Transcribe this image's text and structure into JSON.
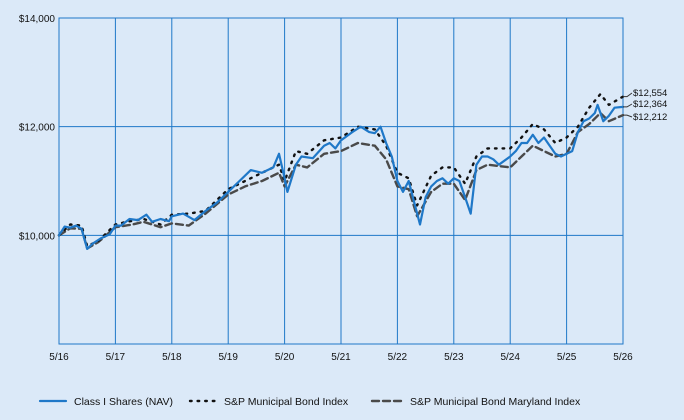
{
  "chart_data": {
    "type": "line",
    "x_ticks": [
      "5/16",
      "5/17",
      "5/18",
      "5/19",
      "5/20",
      "5/21",
      "5/22",
      "5/23",
      "5/24",
      "5/25",
      "5/26"
    ],
    "y_ticks": [
      10000,
      12000,
      14000
    ],
    "y_tick_labels": [
      "$10,000",
      "$12,000",
      "$14,000"
    ],
    "ylim": [
      8000,
      14000
    ],
    "xlim": [
      0,
      10
    ],
    "grid": true,
    "legend_position": "bottom",
    "series": [
      {
        "name": "Class I Shares (NAV)",
        "color": "#1f78c8",
        "style": "solid",
        "end_label": "$12,364",
        "points": [
          [
            0,
            10000
          ],
          [
            0.1,
            10160
          ],
          [
            0.2,
            10140
          ],
          [
            0.3,
            10180
          ],
          [
            0.4,
            10120
          ],
          [
            0.5,
            9750
          ],
          [
            0.6,
            9850
          ],
          [
            0.75,
            9950
          ],
          [
            0.9,
            10020
          ],
          [
            1.0,
            10180
          ],
          [
            1.1,
            10180
          ],
          [
            1.25,
            10300
          ],
          [
            1.4,
            10280
          ],
          [
            1.55,
            10380
          ],
          [
            1.65,
            10250
          ],
          [
            1.8,
            10300
          ],
          [
            1.95,
            10260
          ],
          [
            2.0,
            10350
          ],
          [
            2.2,
            10400
          ],
          [
            2.4,
            10280
          ],
          [
            2.6,
            10450
          ],
          [
            2.8,
            10600
          ],
          [
            3.0,
            10800
          ],
          [
            3.2,
            11000
          ],
          [
            3.4,
            11200
          ],
          [
            3.6,
            11150
          ],
          [
            3.8,
            11250
          ],
          [
            3.9,
            11500
          ],
          [
            4.0,
            11050
          ],
          [
            4.05,
            10800
          ],
          [
            4.2,
            11300
          ],
          [
            4.3,
            11450
          ],
          [
            4.5,
            11420
          ],
          [
            4.7,
            11650
          ],
          [
            4.8,
            11700
          ],
          [
            4.9,
            11600
          ],
          [
            5.0,
            11750
          ],
          [
            5.2,
            11900
          ],
          [
            5.35,
            12000
          ],
          [
            5.5,
            11900
          ],
          [
            5.6,
            11880
          ],
          [
            5.7,
            12000
          ],
          [
            5.8,
            11700
          ],
          [
            5.9,
            11450
          ],
          [
            6.0,
            11000
          ],
          [
            6.1,
            10800
          ],
          [
            6.2,
            11000
          ],
          [
            6.3,
            10600
          ],
          [
            6.4,
            10200
          ],
          [
            6.5,
            10700
          ],
          [
            6.6,
            10900
          ],
          [
            6.7,
            11000
          ],
          [
            6.8,
            11050
          ],
          [
            6.9,
            10950
          ],
          [
            7.0,
            11050
          ],
          [
            7.1,
            11000
          ],
          [
            7.2,
            10700
          ],
          [
            7.3,
            10400
          ],
          [
            7.4,
            11300
          ],
          [
            7.5,
            11450
          ],
          [
            7.6,
            11450
          ],
          [
            7.7,
            11400
          ],
          [
            7.8,
            11300
          ],
          [
            8.0,
            11450
          ],
          [
            8.1,
            11550
          ],
          [
            8.2,
            11700
          ],
          [
            8.3,
            11700
          ],
          [
            8.4,
            11850
          ],
          [
            8.5,
            11700
          ],
          [
            8.6,
            11800
          ],
          [
            8.7,
            11650
          ],
          [
            8.8,
            11500
          ],
          [
            8.9,
            11450
          ],
          [
            9.0,
            11500
          ],
          [
            9.1,
            11550
          ],
          [
            9.2,
            11900
          ],
          [
            9.3,
            12100
          ],
          [
            9.4,
            12150
          ],
          [
            9.5,
            12250
          ],
          [
            9.55,
            12400
          ],
          [
            9.65,
            12100
          ],
          [
            9.75,
            12200
          ],
          [
            9.85,
            12350
          ],
          [
            10.0,
            12364
          ]
        ]
      },
      {
        "name": "S&P Municipal Bond Index",
        "color": "#111111",
        "style": "dotted",
        "end_label": "$12,554",
        "points": [
          [
            0,
            10000
          ],
          [
            0.2,
            10200
          ],
          [
            0.4,
            10180
          ],
          [
            0.5,
            9800
          ],
          [
            0.7,
            9900
          ],
          [
            1.0,
            10200
          ],
          [
            1.2,
            10250
          ],
          [
            1.5,
            10300
          ],
          [
            1.8,
            10200
          ],
          [
            2.0,
            10380
          ],
          [
            2.3,
            10400
          ],
          [
            2.6,
            10450
          ],
          [
            3.0,
            10850
          ],
          [
            3.3,
            11000
          ],
          [
            3.6,
            11150
          ],
          [
            3.9,
            11300
          ],
          [
            4.0,
            11000
          ],
          [
            4.2,
            11550
          ],
          [
            4.4,
            11500
          ],
          [
            4.7,
            11750
          ],
          [
            5.0,
            11800
          ],
          [
            5.3,
            12000
          ],
          [
            5.6,
            11950
          ],
          [
            5.8,
            11650
          ],
          [
            6.0,
            11150
          ],
          [
            6.2,
            11050
          ],
          [
            6.35,
            10550
          ],
          [
            6.6,
            11100
          ],
          [
            6.8,
            11250
          ],
          [
            7.0,
            11250
          ],
          [
            7.2,
            10950
          ],
          [
            7.4,
            11450
          ],
          [
            7.6,
            11600
          ],
          [
            8.0,
            11600
          ],
          [
            8.2,
            11800
          ],
          [
            8.4,
            12050
          ],
          [
            8.6,
            11950
          ],
          [
            8.8,
            11700
          ],
          [
            9.0,
            11800
          ],
          [
            9.2,
            12000
          ],
          [
            9.4,
            12350
          ],
          [
            9.6,
            12600
          ],
          [
            9.75,
            12400
          ],
          [
            10.0,
            12554
          ]
        ]
      },
      {
        "name": "S&P Municipal Bond Maryland Index",
        "color": "#4a4a4a",
        "style": "dashed",
        "end_label": "$12,212",
        "points": [
          [
            0,
            10000
          ],
          [
            0.2,
            10130
          ],
          [
            0.4,
            10120
          ],
          [
            0.5,
            9760
          ],
          [
            0.7,
            9880
          ],
          [
            1.0,
            10150
          ],
          [
            1.3,
            10200
          ],
          [
            1.5,
            10250
          ],
          [
            1.8,
            10150
          ],
          [
            2.0,
            10220
          ],
          [
            2.3,
            10180
          ],
          [
            2.6,
            10400
          ],
          [
            3.0,
            10750
          ],
          [
            3.3,
            10900
          ],
          [
            3.6,
            11000
          ],
          [
            3.9,
            11150
          ],
          [
            4.0,
            10900
          ],
          [
            4.2,
            11300
          ],
          [
            4.4,
            11250
          ],
          [
            4.7,
            11500
          ],
          [
            5.0,
            11550
          ],
          [
            5.3,
            11700
          ],
          [
            5.6,
            11650
          ],
          [
            5.8,
            11400
          ],
          [
            6.0,
            10900
          ],
          [
            6.2,
            10850
          ],
          [
            6.35,
            10350
          ],
          [
            6.6,
            10800
          ],
          [
            6.8,
            10950
          ],
          [
            7.0,
            10950
          ],
          [
            7.2,
            10650
          ],
          [
            7.4,
            11200
          ],
          [
            7.6,
            11300
          ],
          [
            8.0,
            11250
          ],
          [
            8.2,
            11450
          ],
          [
            8.4,
            11650
          ],
          [
            8.6,
            11550
          ],
          [
            8.8,
            11450
          ],
          [
            9.0,
            11500
          ],
          [
            9.2,
            11900
          ],
          [
            9.4,
            12050
          ],
          [
            9.6,
            12250
          ],
          [
            9.75,
            12100
          ],
          [
            10.0,
            12212
          ]
        ]
      }
    ]
  }
}
